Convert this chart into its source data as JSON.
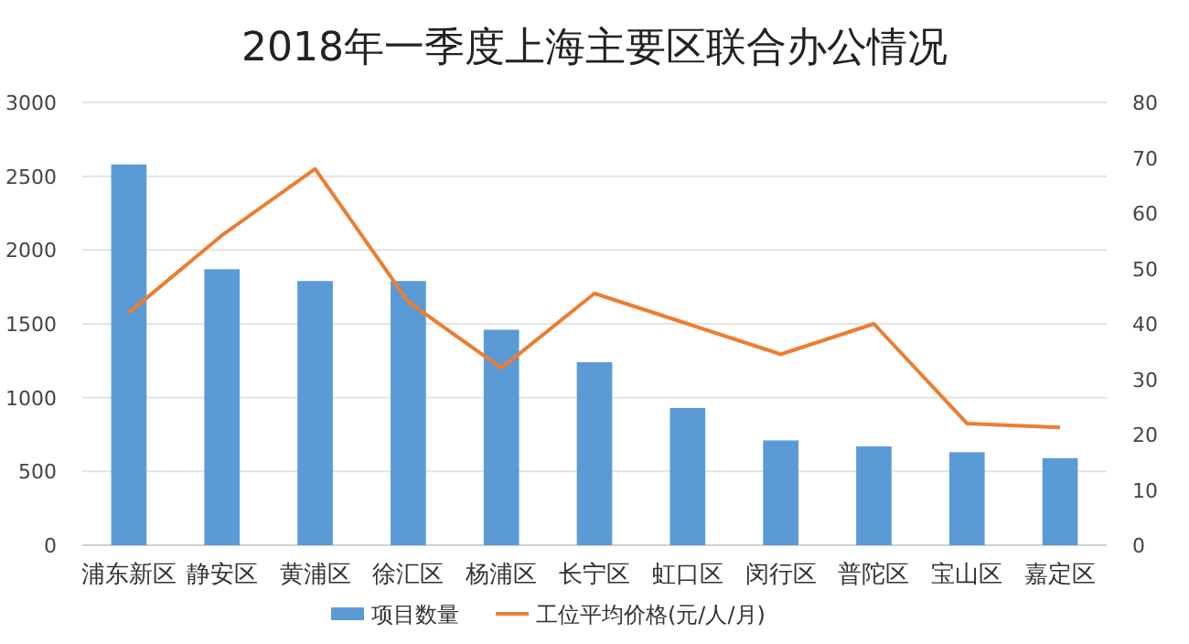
{
  "chart_data": {
    "type": "bar",
    "title": "2018年一季度上海主要区联合办公情况",
    "categories": [
      "浦东新区",
      "静安区",
      "黄浦区",
      "徐汇区",
      "杨浦区",
      "长宁区",
      "虹口区",
      "闵行区",
      "普陀区",
      "宝山区",
      "嘉定区"
    ],
    "series": [
      {
        "name": "项目数量",
        "color": "#5b9bd5",
        "values": [
          2580,
          1870,
          1790,
          1790,
          1460,
          1240,
          930,
          710,
          670,
          630,
          590
        ]
      },
      {
        "name": "工位平均价格(元/人/月)",
        "type": "line",
        "axis": "y2",
        "color": "#ed7d31",
        "values": [
          42,
          56,
          68,
          44,
          32,
          45.5,
          40,
          34.5,
          40,
          22,
          21.3
        ]
      }
    ],
    "ylim": [
      0,
      3000
    ],
    "yticks": [
      0,
      500,
      1000,
      1500,
      2000,
      2500,
      3000
    ],
    "y2lim": [
      0,
      80
    ],
    "y2ticks": [
      0,
      10,
      20,
      30,
      40,
      50,
      60,
      70,
      80
    ],
    "grid": "y",
    "legend": "bottom",
    "marker": "none",
    "line_style": "solid"
  }
}
